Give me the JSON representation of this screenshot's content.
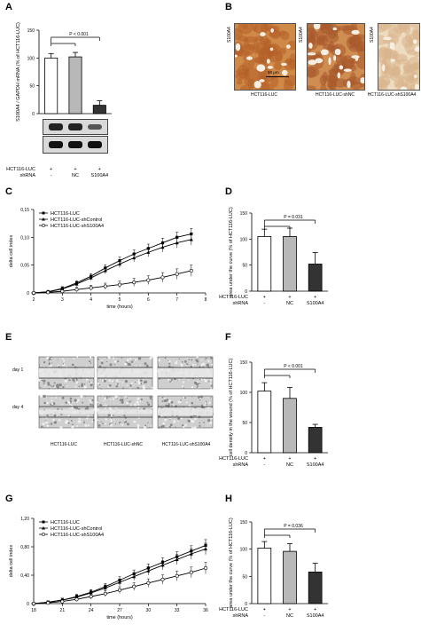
{
  "panel_labels": {
    "A": "A",
    "B": "B",
    "C": "C",
    "D": "D",
    "E": "E",
    "F": "F",
    "G": "G",
    "H": "H"
  },
  "colors": {
    "control": "#ffffff",
    "shNC": "#b8b8b8",
    "shS100A4": "#333333",
    "histo_dark": "#c9782f",
    "histo_light": "#e9cda3"
  },
  "factor_rows": {
    "A": {
      "row1_label": "HCT116-LUC",
      "row2_label": "shRNA",
      "row1": [
        "+",
        "+",
        "+"
      ],
      "row2": [
        "-",
        "NC",
        "S100A4"
      ]
    },
    "D": {
      "row1_label": "HCT116-LUC",
      "row2_label": "shRNA",
      "row1": [
        "+",
        "+",
        "+"
      ],
      "row2": [
        "-",
        "NC",
        "S100A4"
      ]
    },
    "F": {
      "row1_label": "HCT116-LUC",
      "row2_label": "shRNA",
      "row1": [
        "+",
        "+",
        "+"
      ],
      "row2": [
        "-",
        "NC",
        "S100A4"
      ]
    },
    "H": {
      "row1_label": "HCT116-LUC",
      "row2_label": "shRNA",
      "row1": [
        "+",
        "+",
        "+"
      ],
      "row2": [
        "-",
        "NC",
        "S100A4"
      ]
    }
  },
  "panel_B": {
    "images": [
      {
        "side_label": "S100A4",
        "caption": "HCT116-LUC",
        "scale_bar": "50 μm"
      },
      {
        "side_label": "S100A4",
        "caption": "HCT116-LUC-shNC"
      },
      {
        "side_label": "S100A4",
        "caption": "HCT116-LUC-shS100A4"
      }
    ]
  },
  "panel_E": {
    "rows": [
      "day 1",
      "day 4"
    ],
    "captions": [
      "HCT116-LUC",
      "HCT116-LUC-shNC",
      "HCT116-LUC-shS100A4"
    ]
  },
  "chart_data": [
    {
      "panel": "A",
      "type": "bar",
      "ylabel": "S100A4 / GAPDH mRNA (% of HCT116-LUC)",
      "yticks": [
        "0",
        "50",
        "100",
        "150"
      ],
      "ylim": [
        0,
        150
      ],
      "values": [
        100,
        102,
        15
      ],
      "errors": [
        8,
        8,
        8
      ],
      "significance": "P < 0.001"
    },
    {
      "panel": "C",
      "type": "line",
      "xlabel": "time (hours)",
      "ylabel": "delta cell index",
      "xticks": [
        "2",
        "3",
        "4",
        "5",
        "6",
        "7",
        "8"
      ],
      "yticks": [
        "0",
        "0,05",
        "0,10",
        "0,15"
      ],
      "xlim": [
        2,
        8
      ],
      "ylim": [
        0,
        0.15
      ],
      "series": [
        {
          "name": "HCT116-LUC",
          "marker": "square",
          "x": [
            2,
            2.5,
            3,
            3.5,
            4,
            4.5,
            5,
            5.5,
            6,
            6.5,
            7,
            7.5
          ],
          "y": [
            0.0,
            0.002,
            0.008,
            0.018,
            0.03,
            0.045,
            0.058,
            0.07,
            0.08,
            0.09,
            0.1,
            0.106
          ]
        },
        {
          "name": "HCT116-LUC-shControl",
          "marker": "triangle",
          "x": [
            2,
            2.5,
            3,
            3.5,
            4,
            4.5,
            5,
            5.5,
            6,
            6.5,
            7,
            7.5
          ],
          "y": [
            0.0,
            0.002,
            0.007,
            0.016,
            0.027,
            0.04,
            0.052,
            0.063,
            0.073,
            0.082,
            0.09,
            0.096
          ]
        },
        {
          "name": "HCT116-LUC-shS100A4",
          "marker": "circle",
          "x": [
            2,
            2.5,
            3,
            3.5,
            4,
            4.5,
            5,
            5.5,
            6,
            6.5,
            7,
            7.5
          ],
          "y": [
            0.0,
            0.001,
            0.003,
            0.006,
            0.009,
            0.012,
            0.015,
            0.019,
            0.023,
            0.028,
            0.034,
            0.04
          ]
        }
      ]
    },
    {
      "panel": "D",
      "type": "bar",
      "ylabel": "area under the curve (% of HCT116-LUC)",
      "yticks": [
        "0",
        "50",
        "100",
        "150"
      ],
      "ylim": [
        0,
        150
      ],
      "values": [
        105,
        105,
        52
      ],
      "errors": [
        14,
        16,
        22
      ],
      "significance": "P = 0.031"
    },
    {
      "panel": "F",
      "type": "bar",
      "ylabel": "cell density in the wound (% of HCT116-LUC)",
      "yticks": [
        "0",
        "50",
        "100",
        "150"
      ],
      "ylim": [
        0,
        150
      ],
      "values": [
        102,
        90,
        42
      ],
      "errors": [
        14,
        18,
        5
      ],
      "significance": "P < 0.001"
    },
    {
      "panel": "G",
      "type": "line",
      "xlabel": "time (hours)",
      "ylabel": "delta cell index",
      "xticks": [
        "18",
        "21",
        "24",
        "27",
        "30",
        "33",
        "36"
      ],
      "yticks": [
        "0",
        "0,40",
        "0,80",
        "1,20"
      ],
      "xlim": [
        18,
        36
      ],
      "ylim": [
        0,
        1.2
      ],
      "series": [
        {
          "name": "HCT116-LUC",
          "marker": "square",
          "x": [
            18,
            19.5,
            21,
            22.5,
            24,
            25.5,
            27,
            28.5,
            30,
            31.5,
            33,
            34.5,
            36
          ],
          "y": [
            0,
            0.02,
            0.05,
            0.1,
            0.16,
            0.24,
            0.33,
            0.42,
            0.5,
            0.58,
            0.66,
            0.74,
            0.82
          ]
        },
        {
          "name": "HCT116-LUC-shControl",
          "marker": "triangle",
          "x": [
            18,
            19.5,
            21,
            22.5,
            24,
            25.5,
            27,
            28.5,
            30,
            31.5,
            33,
            34.5,
            36
          ],
          "y": [
            0,
            0.02,
            0.05,
            0.09,
            0.15,
            0.22,
            0.3,
            0.38,
            0.46,
            0.54,
            0.62,
            0.7,
            0.77
          ]
        },
        {
          "name": "HCT116-LUC-shS100A4",
          "marker": "circle",
          "x": [
            18,
            19.5,
            21,
            22.5,
            24,
            25.5,
            27,
            28.5,
            30,
            31.5,
            33,
            34.5,
            36
          ],
          "y": [
            0,
            0.01,
            0.03,
            0.06,
            0.1,
            0.14,
            0.19,
            0.24,
            0.29,
            0.34,
            0.39,
            0.44,
            0.5
          ]
        }
      ]
    },
    {
      "panel": "H",
      "type": "bar",
      "ylabel": "area under the curve (% of HCT116-LUC)",
      "yticks": [
        "0",
        "50",
        "100",
        "150"
      ],
      "ylim": [
        0,
        150
      ],
      "values": [
        102,
        96,
        58
      ],
      "errors": [
        12,
        14,
        16
      ],
      "significance": "P = 0.036"
    }
  ]
}
